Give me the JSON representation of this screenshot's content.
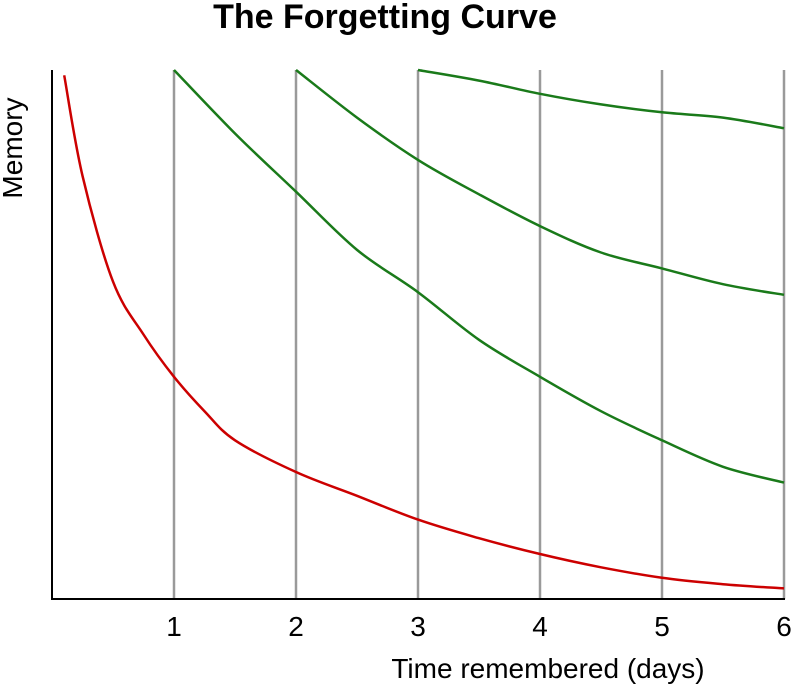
{
  "chart_data": {
    "type": "line",
    "title": "The Forgetting Curve",
    "xlabel": "Time remembered (days)",
    "ylabel": "Memory",
    "xlim": [
      0,
      6
    ],
    "ylim": [
      0,
      1
    ],
    "x_ticks": [
      "1",
      "2",
      "3",
      "4",
      "5",
      "6"
    ],
    "x_tick_values": [
      1,
      2,
      3,
      4,
      5,
      6
    ],
    "grid": "vertical",
    "legend": "none",
    "series": [
      {
        "color": "#cc0000",
        "x": [
          0.1,
          0.25,
          0.5,
          0.75,
          1.0,
          1.25,
          1.5,
          2.0,
          2.5,
          3.0,
          3.5,
          4.0,
          4.5,
          5.0,
          5.5,
          6.0
        ],
        "y": [
          0.99,
          0.8,
          0.6,
          0.5,
          0.42,
          0.355,
          0.3,
          0.24,
          0.195,
          0.15,
          0.115,
          0.085,
          0.06,
          0.04,
          0.028,
          0.02
        ]
      },
      {
        "color": "#1a7a1a",
        "x": [
          1.0,
          1.5,
          2.0,
          2.5,
          3.0,
          3.5,
          4.0,
          4.5,
          5.0,
          5.5,
          6.0
        ],
        "y": [
          1.0,
          0.88,
          0.77,
          0.66,
          0.58,
          0.49,
          0.42,
          0.355,
          0.3,
          0.25,
          0.22
        ]
      },
      {
        "color": "#1a7a1a",
        "x": [
          2.0,
          2.5,
          3.0,
          3.5,
          4.0,
          4.5,
          5.0,
          5.5,
          6.0
        ],
        "y": [
          1.0,
          0.91,
          0.83,
          0.765,
          0.705,
          0.655,
          0.625,
          0.595,
          0.575
        ]
      },
      {
        "color": "#1a7a1a",
        "x": [
          3.0,
          3.5,
          4.0,
          4.5,
          5.0,
          5.5,
          6.0
        ],
        "y": [
          1.0,
          0.98,
          0.955,
          0.935,
          0.92,
          0.91,
          0.89
        ]
      }
    ]
  }
}
